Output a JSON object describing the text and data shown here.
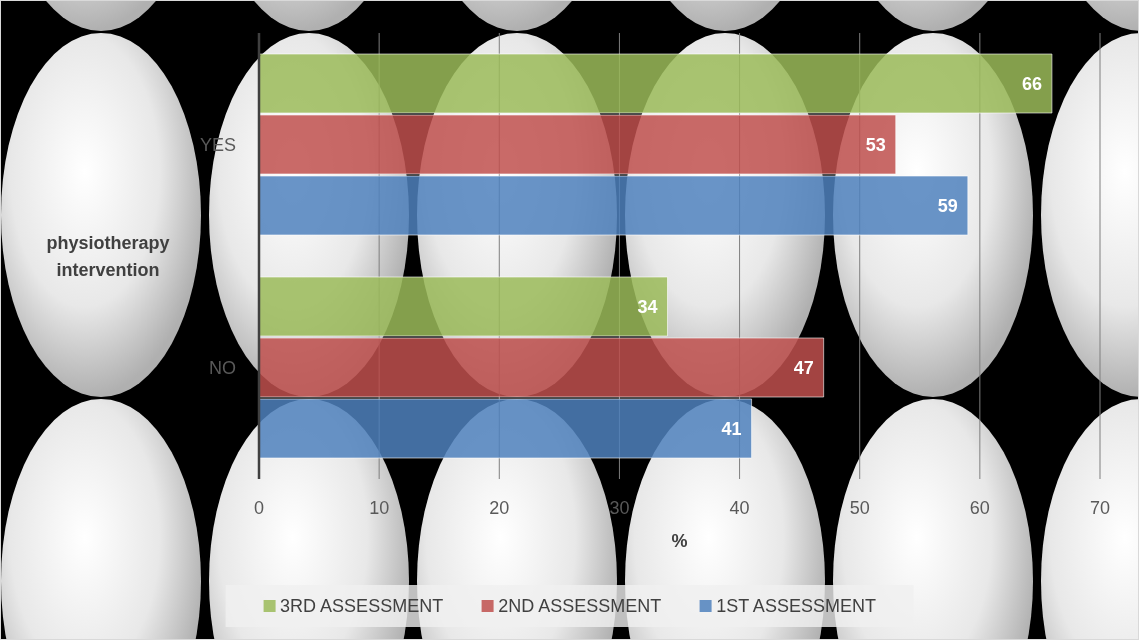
{
  "chart_data": {
    "type": "bar",
    "orientation": "horizontal",
    "ylabel": "physiotherapy intervention",
    "xlabel": "%",
    "categories": [
      "YES",
      "NO"
    ],
    "series": [
      {
        "name": "3RD ASSESSMENT",
        "color": "#9bbb59",
        "values": [
          66,
          34
        ]
      },
      {
        "name": "2ND ASSESSMENT",
        "color": "#c0504d",
        "values": [
          53,
          47
        ]
      },
      {
        "name": "1ST ASSESSMENT",
        "color": "#4f81bd",
        "values": [
          59,
          41
        ]
      }
    ],
    "xlim": [
      0,
      70
    ],
    "xticks": [
      0,
      10,
      20,
      30,
      40,
      50,
      60,
      70
    ],
    "grid": "x",
    "legend": "bottom",
    "data_labels": true
  }
}
